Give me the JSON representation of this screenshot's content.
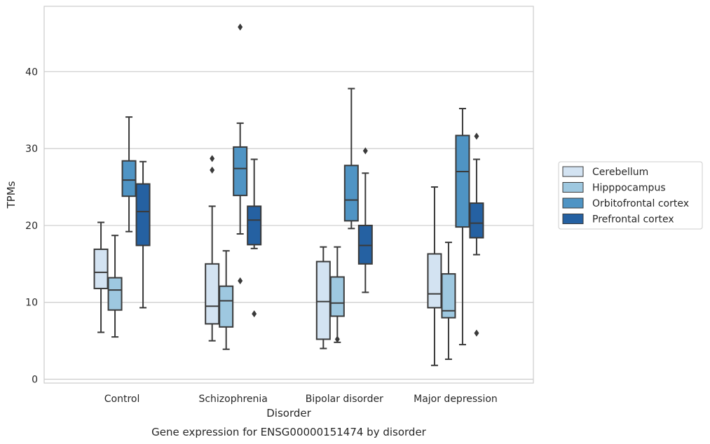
{
  "caption": "Gene expression for ENSG00000151474 by disorder",
  "chart_data": {
    "type": "box",
    "xlabel": "Disorder",
    "ylabel": "TPMs",
    "ylim": [
      -0.5,
      48.5
    ],
    "yticks": [
      0,
      10,
      20,
      30,
      40
    ],
    "grid": "horizontal",
    "legend_position": "right",
    "categories": [
      "Control",
      "Schizophrenia",
      "Bipolar disorder",
      "Major depression"
    ],
    "series": [
      {
        "name": "Cerebellum",
        "color": "#d3e3f2",
        "boxes": [
          {
            "whislo": 6.1,
            "q1": 11.8,
            "med": 13.9,
            "q3": 16.9,
            "whishi": 20.4,
            "fliers": []
          },
          {
            "whislo": 5.0,
            "q1": 7.2,
            "med": 9.5,
            "q3": 15.0,
            "whishi": 22.5,
            "fliers": [
              27.2,
              28.7
            ]
          },
          {
            "whislo": 4.0,
            "q1": 5.2,
            "med": 10.1,
            "q3": 15.3,
            "whishi": 17.2,
            "fliers": []
          },
          {
            "whislo": 1.8,
            "q1": 9.3,
            "med": 11.1,
            "q3": 16.3,
            "whishi": 25.0,
            "fliers": []
          }
        ]
      },
      {
        "name": "Hipppocampus",
        "color": "#9ec8e0",
        "boxes": [
          {
            "whislo": 5.5,
            "q1": 9.0,
            "med": 11.6,
            "q3": 13.2,
            "whishi": 18.7,
            "fliers": []
          },
          {
            "whislo": 3.9,
            "q1": 6.8,
            "med": 10.2,
            "q3": 12.1,
            "whishi": 16.7,
            "fliers": []
          },
          {
            "whislo": 4.8,
            "q1": 8.2,
            "med": 9.9,
            "q3": 13.3,
            "whishi": 17.2,
            "fliers": [
              5.2
            ]
          },
          {
            "whislo": 2.6,
            "q1": 8.0,
            "med": 8.9,
            "q3": 13.7,
            "whishi": 17.8,
            "fliers": []
          }
        ]
      },
      {
        "name": "Orbitofrontal cortex",
        "color": "#4f94c4",
        "boxes": [
          {
            "whislo": 19.2,
            "q1": 23.8,
            "med": 25.9,
            "q3": 28.4,
            "whishi": 34.1,
            "fliers": []
          },
          {
            "whislo": 18.9,
            "q1": 23.9,
            "med": 27.4,
            "q3": 30.2,
            "whishi": 33.3,
            "fliers": [
              12.8,
              45.8
            ]
          },
          {
            "whislo": 19.6,
            "q1": 20.6,
            "med": 23.3,
            "q3": 27.8,
            "whishi": 37.8,
            "fliers": []
          },
          {
            "whislo": 4.5,
            "q1": 19.8,
            "med": 27.0,
            "q3": 31.7,
            "whishi": 35.2,
            "fliers": []
          }
        ]
      },
      {
        "name": "Prefrontal cortex",
        "color": "#2561a2",
        "boxes": [
          {
            "whislo": 9.3,
            "q1": 17.4,
            "med": 21.8,
            "q3": 25.4,
            "whishi": 28.3,
            "fliers": []
          },
          {
            "whislo": 17.0,
            "q1": 17.5,
            "med": 20.7,
            "q3": 22.5,
            "whishi": 28.6,
            "fliers": [
              8.5
            ]
          },
          {
            "whislo": 11.3,
            "q1": 15.0,
            "med": 17.4,
            "q3": 20.0,
            "whishi": 26.8,
            "fliers": [
              29.7
            ]
          },
          {
            "whislo": 16.2,
            "q1": 18.4,
            "med": 20.3,
            "q3": 22.9,
            "whishi": 28.6,
            "fliers": [
              6.0,
              31.6
            ]
          }
        ]
      }
    ]
  }
}
